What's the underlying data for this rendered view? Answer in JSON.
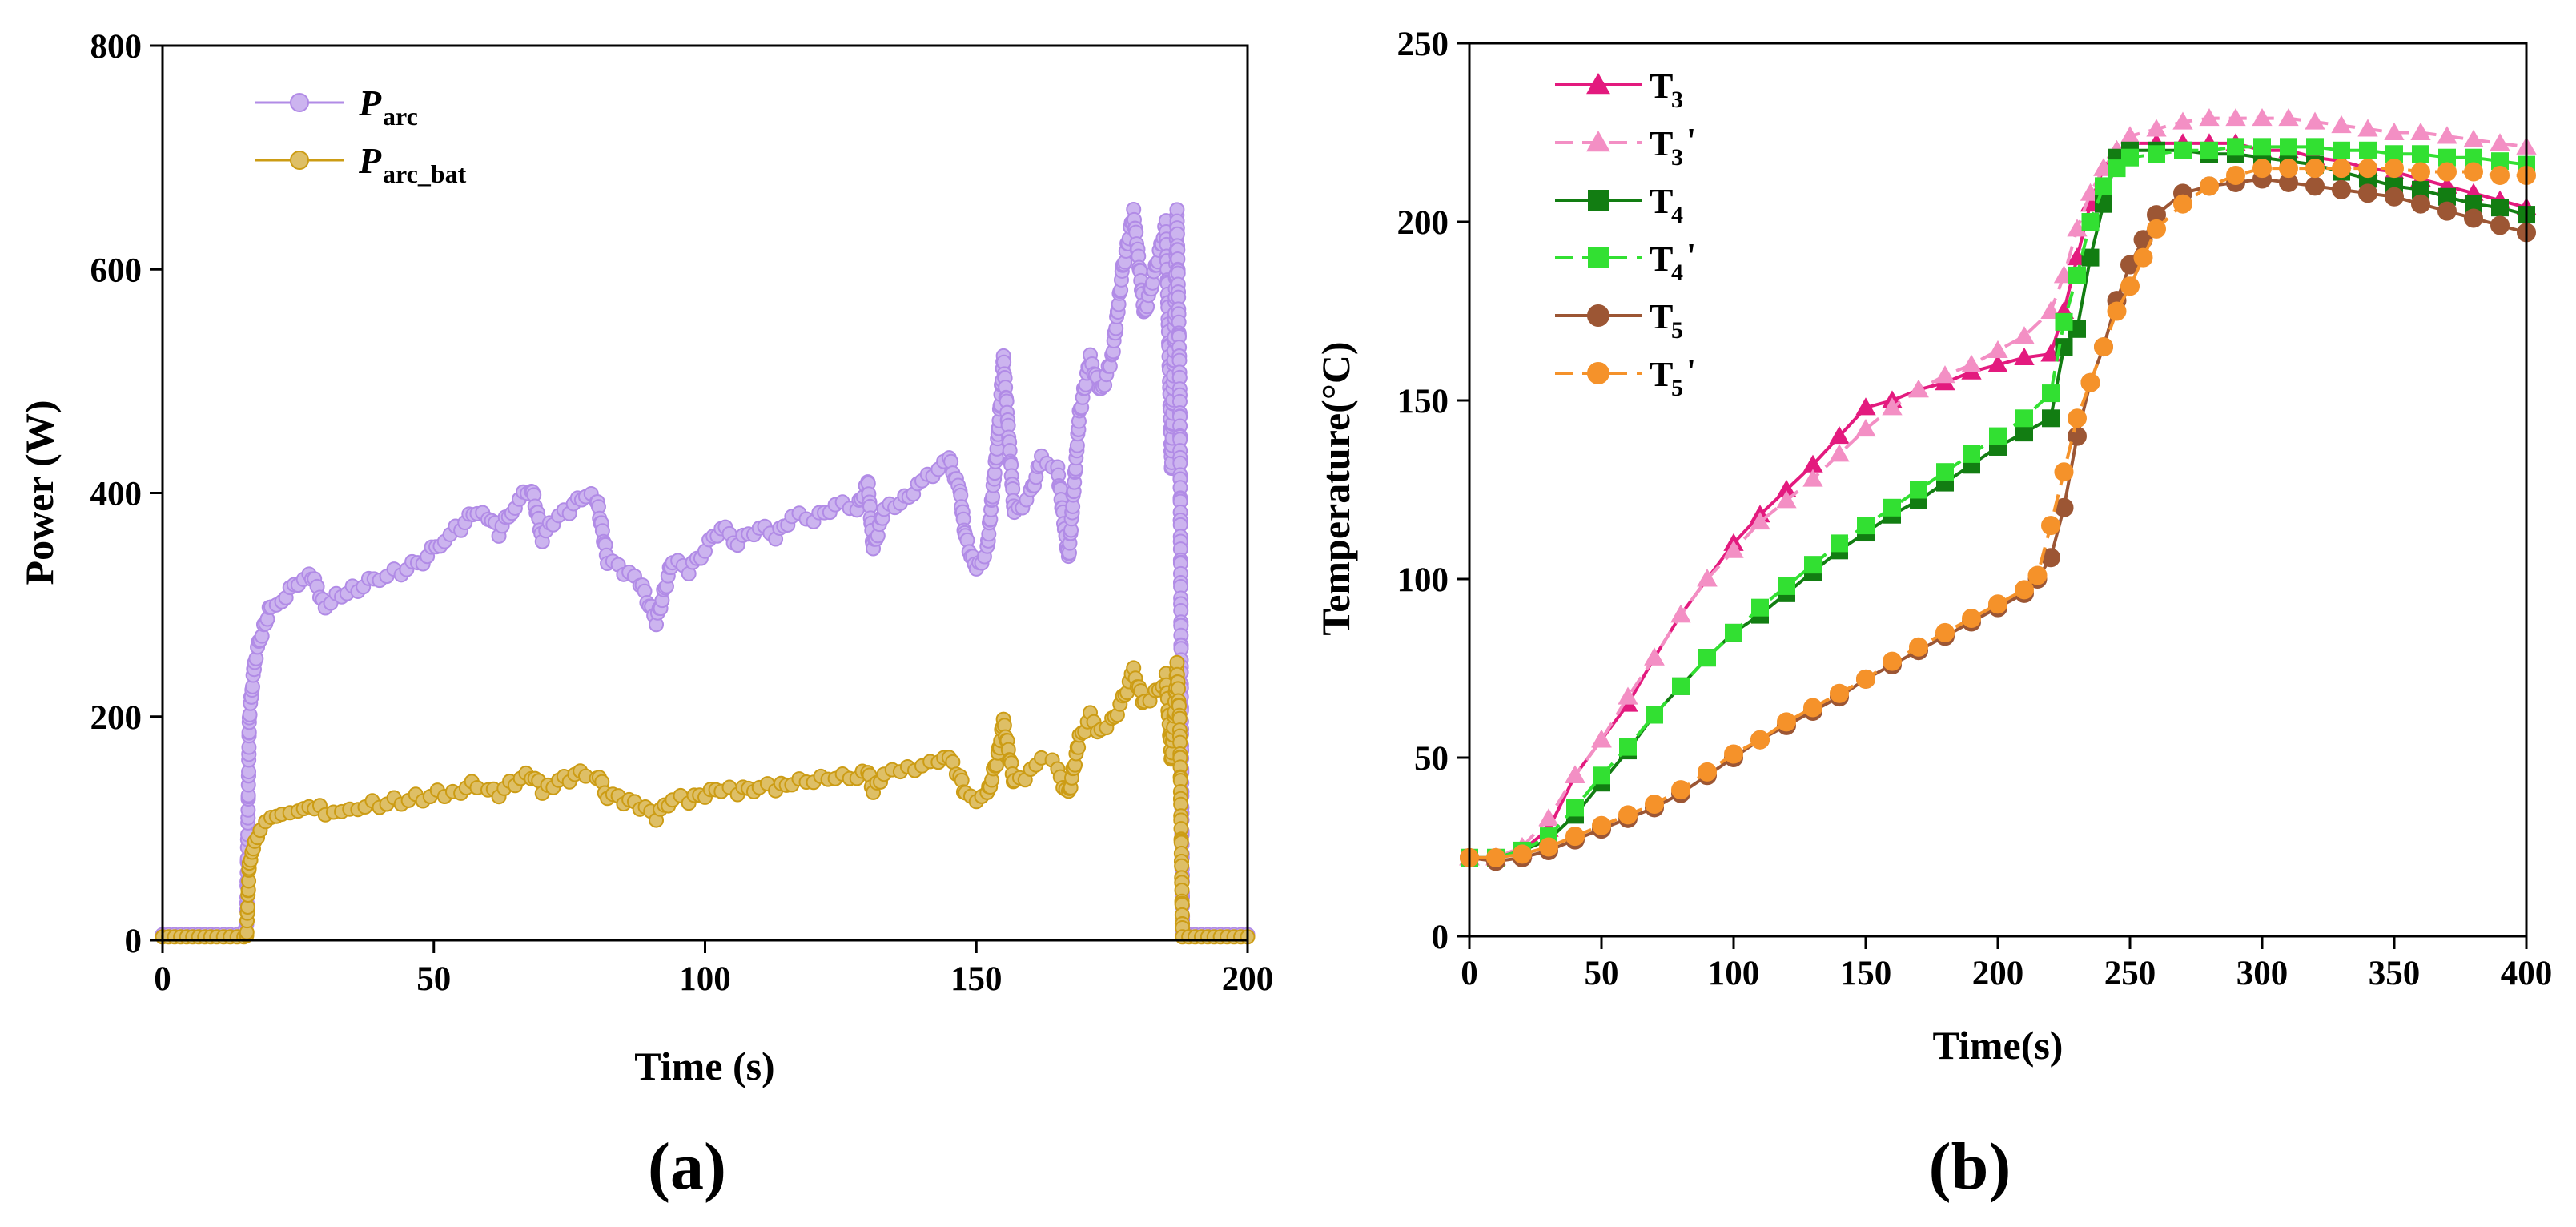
{
  "chart_data": [
    {
      "panel_label": "(a)",
      "type": "line",
      "xlabel": "Time (s)",
      "ylabel": "Power (W)",
      "xlim": [
        0,
        200
      ],
      "ylim": [
        0,
        800
      ],
      "xticks": [
        "0",
        "50",
        "100",
        "150",
        "200"
      ],
      "yticks": [
        "0",
        "200",
        "400",
        "600",
        "800"
      ],
      "legend_position": "top-left",
      "series": [
        {
          "name": "P",
          "subscript": "arc",
          "color": "#b18be6",
          "marker": "circle",
          "x": [
            0,
            10,
            15,
            15.5,
            16,
            16.5,
            17,
            18,
            19,
            20,
            22,
            25,
            27,
            30,
            33,
            36,
            40,
            44,
            48,
            52,
            55,
            58,
            60,
            62,
            65,
            68,
            70,
            72,
            75,
            78,
            80,
            82,
            85,
            88,
            91,
            94,
            97,
            100,
            103,
            106,
            110,
            113,
            116,
            120,
            124,
            128,
            130,
            131,
            133,
            136,
            140,
            143,
            145,
            147,
            148,
            150,
            152,
            154,
            155,
            157,
            160,
            162,
            164,
            165,
            167,
            169,
            171,
            173,
            175,
            177,
            179,
            181,
            183,
            185,
            186,
            187,
            187.5,
            188,
            195,
            200
          ],
          "y": [
            5,
            5,
            5,
            15,
            200,
            225,
            250,
            270,
            285,
            300,
            305,
            320,
            330,
            300,
            310,
            315,
            325,
            330,
            340,
            360,
            370,
            385,
            380,
            365,
            390,
            405,
            360,
            375,
            385,
            400,
            395,
            340,
            330,
            320,
            285,
            340,
            330,
            350,
            370,
            355,
            370,
            360,
            380,
            375,
            390,
            385,
            410,
            350,
            385,
            390,
            410,
            420,
            430,
            400,
            360,
            330,
            350,
            450,
            520,
            380,
            400,
            430,
            420,
            420,
            340,
            470,
            520,
            490,
            520,
            600,
            650,
            560,
            600,
            640,
            420,
            650,
            500,
            5,
            5,
            5
          ]
        },
        {
          "name": "P",
          "subscript": "arc_bat",
          "color": "#cc9c14",
          "marker": "circle",
          "x": [
            0,
            10,
            15,
            15.5,
            16,
            16.5,
            17,
            18,
            19,
            20,
            22,
            25,
            27,
            30,
            33,
            36,
            40,
            44,
            48,
            52,
            55,
            58,
            60,
            62,
            65,
            68,
            70,
            72,
            75,
            78,
            80,
            82,
            85,
            88,
            91,
            94,
            97,
            100,
            103,
            106,
            110,
            113,
            116,
            120,
            124,
            128,
            130,
            131,
            133,
            136,
            140,
            143,
            145,
            147,
            148,
            150,
            152,
            154,
            155,
            157,
            160,
            162,
            164,
            165,
            167,
            169,
            171,
            173,
            175,
            177,
            179,
            181,
            183,
            185,
            186,
            187,
            187.5,
            188,
            195,
            200
          ],
          "y": [
            3,
            3,
            3,
            5,
            70,
            80,
            90,
            100,
            108,
            112,
            115,
            118,
            122,
            115,
            118,
            120,
            122,
            125,
            128,
            132,
            135,
            140,
            138,
            132,
            142,
            148,
            135,
            140,
            145,
            150,
            148,
            130,
            125,
            120,
            110,
            128,
            125,
            130,
            135,
            132,
            138,
            135,
            140,
            142,
            145,
            145,
            150,
            132,
            148,
            150,
            155,
            158,
            162,
            145,
            130,
            122,
            130,
            165,
            195,
            140,
            150,
            160,
            158,
            150,
            130,
            180,
            200,
            185,
            195,
            215,
            240,
            210,
            220,
            235,
            160,
            245,
            195,
            3,
            3,
            3
          ]
        }
      ]
    },
    {
      "panel_label": "(b)",
      "type": "line",
      "xlabel": "Time(s)",
      "ylabel": "Temperature(°C)",
      "xlim": [
        0,
        400
      ],
      "ylim": [
        0,
        250
      ],
      "xticks": [
        "0",
        "50",
        "100",
        "150",
        "200",
        "250",
        "300",
        "350",
        "400"
      ],
      "yticks": [
        "0",
        "50",
        "100",
        "150",
        "200",
        "250"
      ],
      "legend_position": "top-left",
      "series": [
        {
          "name": "T",
          "subscript": "3",
          "prime": false,
          "color": "#e31a7e",
          "marker": "triangle",
          "dashed": false,
          "x": [
            0,
            10,
            20,
            30,
            40,
            50,
            60,
            70,
            80,
            90,
            100,
            110,
            120,
            130,
            140,
            150,
            160,
            170,
            180,
            190,
            200,
            210,
            220,
            225,
            230,
            235,
            240,
            245,
            250,
            260,
            270,
            280,
            290,
            300,
            310,
            320,
            330,
            340,
            350,
            360,
            370,
            380,
            390,
            400
          ],
          "y": [
            22,
            22,
            24,
            30,
            45,
            55,
            65,
            78,
            90,
            100,
            110,
            118,
            125,
            132,
            140,
            148,
            150,
            153,
            155,
            158,
            160,
            162,
            163,
            175,
            190,
            205,
            215,
            220,
            222,
            222,
            222,
            222,
            222,
            220,
            220,
            218,
            217,
            215,
            214,
            212,
            210,
            208,
            206,
            204
          ]
        },
        {
          "name": "T",
          "subscript": "3",
          "prime": true,
          "color": "#f38fc4",
          "marker": "triangle",
          "dashed": true,
          "x": [
            0,
            10,
            20,
            30,
            40,
            50,
            60,
            70,
            80,
            90,
            100,
            110,
            120,
            130,
            140,
            150,
            160,
            170,
            180,
            190,
            200,
            210,
            220,
            225,
            230,
            235,
            240,
            245,
            250,
            260,
            270,
            280,
            290,
            300,
            310,
            320,
            330,
            340,
            350,
            360,
            370,
            380,
            390,
            400
          ],
          "y": [
            22,
            22,
            25,
            33,
            45,
            55,
            67,
            78,
            90,
            100,
            108,
            116,
            122,
            128,
            135,
            142,
            148,
            153,
            157,
            160,
            164,
            168,
            175,
            185,
            198,
            208,
            215,
            220,
            224,
            226,
            228,
            229,
            229,
            229,
            229,
            228,
            227,
            226,
            225,
            225,
            224,
            223,
            222,
            221
          ]
        },
        {
          "name": "T",
          "subscript": "4",
          "prime": false,
          "color": "#127d12",
          "marker": "square",
          "dashed": false,
          "x": [
            0,
            10,
            20,
            30,
            40,
            50,
            60,
            70,
            80,
            90,
            100,
            110,
            120,
            130,
            140,
            150,
            160,
            170,
            180,
            190,
            200,
            210,
            220,
            225,
            230,
            235,
            240,
            245,
            250,
            260,
            270,
            280,
            290,
            300,
            310,
            320,
            330,
            340,
            350,
            360,
            370,
            380,
            390,
            400
          ],
          "y": [
            22,
            22,
            24,
            27,
            34,
            43,
            52,
            62,
            70,
            78,
            85,
            90,
            96,
            102,
            108,
            113,
            118,
            122,
            127,
            132,
            137,
            141,
            145,
            165,
            170,
            190,
            205,
            218,
            220,
            220,
            220,
            219,
            219,
            218,
            217,
            216,
            214,
            212,
            210,
            209,
            207,
            205,
            204,
            202
          ]
        },
        {
          "name": "T",
          "subscript": "4",
          "prime": true,
          "color": "#32e032",
          "marker": "square",
          "dashed": true,
          "x": [
            0,
            10,
            20,
            30,
            40,
            50,
            60,
            70,
            80,
            90,
            100,
            110,
            120,
            130,
            140,
            150,
            160,
            170,
            180,
            190,
            200,
            210,
            220,
            225,
            230,
            235,
            240,
            245,
            250,
            260,
            270,
            280,
            290,
            300,
            310,
            320,
            330,
            340,
            350,
            360,
            370,
            380,
            390,
            400
          ],
          "y": [
            22,
            22,
            24,
            28,
            36,
            45,
            53,
            62,
            70,
            78,
            85,
            92,
            98,
            104,
            110,
            115,
            120,
            125,
            130,
            135,
            140,
            145,
            152,
            172,
            185,
            200,
            210,
            215,
            218,
            219,
            220,
            220,
            221,
            221,
            221,
            221,
            220,
            220,
            219,
            219,
            218,
            218,
            217,
            216
          ]
        },
        {
          "name": "T",
          "subscript": "5",
          "prime": false,
          "color": "#9c5634",
          "marker": "circle",
          "dashed": false,
          "x": [
            0,
            10,
            20,
            30,
            40,
            50,
            60,
            70,
            80,
            90,
            100,
            110,
            120,
            130,
            140,
            150,
            160,
            170,
            180,
            190,
            200,
            210,
            215,
            220,
            225,
            230,
            235,
            240,
            245,
            250,
            255,
            260,
            270,
            280,
            290,
            300,
            310,
            320,
            330,
            340,
            350,
            360,
            370,
            380,
            390,
            400
          ],
          "y": [
            22,
            21,
            22,
            24,
            27,
            30,
            33,
            36,
            40,
            45,
            50,
            55,
            59,
            63,
            67,
            72,
            76,
            80,
            84,
            88,
            92,
            96,
            100,
            106,
            120,
            140,
            155,
            165,
            178,
            188,
            195,
            202,
            208,
            210,
            211,
            212,
            211,
            210,
            209,
            208,
            207,
            205,
            203,
            201,
            199,
            197
          ]
        },
        {
          "name": "T",
          "subscript": "5",
          "prime": true,
          "color": "#f5922a",
          "marker": "circle",
          "dashed": true,
          "x": [
            0,
            10,
            20,
            30,
            40,
            50,
            60,
            70,
            80,
            90,
            100,
            110,
            120,
            130,
            140,
            150,
            160,
            170,
            180,
            190,
            200,
            210,
            215,
            220,
            225,
            230,
            235,
            240,
            245,
            250,
            255,
            260,
            270,
            280,
            290,
            300,
            310,
            320,
            330,
            340,
            350,
            360,
            370,
            380,
            390,
            400
          ],
          "y": [
            22,
            22,
            23,
            25,
            28,
            31,
            34,
            37,
            41,
            46,
            51,
            55,
            60,
            64,
            68,
            72,
            77,
            81,
            85,
            89,
            93,
            97,
            101,
            115,
            130,
            145,
            155,
            165,
            175,
            182,
            190,
            198,
            205,
            210,
            213,
            215,
            215,
            215,
            215,
            215,
            215,
            214,
            214,
            214,
            213,
            213
          ]
        }
      ]
    }
  ]
}
